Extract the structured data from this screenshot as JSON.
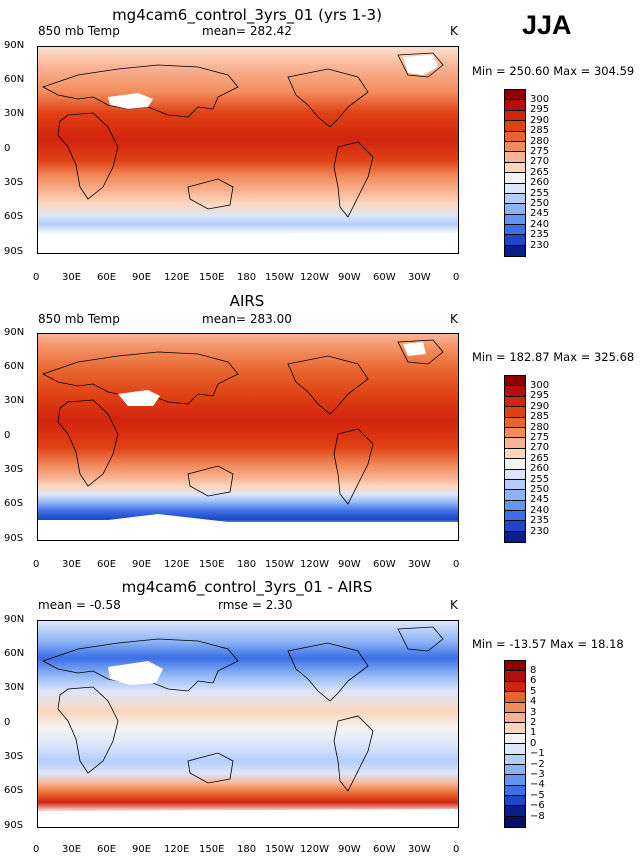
{
  "season": "JJA",
  "panels": [
    {
      "title": "mg4cam6_control_3yrs_01 (yrs 1-3)",
      "left_label": "850 mb Temp",
      "center_label": "mean= 282.42",
      "unit": "K",
      "min_max": "Min = 250.60 Max = 304.59",
      "colorbar_labels": [
        "300",
        "295",
        "290",
        "285",
        "280",
        "275",
        "270",
        "265",
        "260",
        "255",
        "250",
        "245",
        "240",
        "235",
        "230"
      ]
    },
    {
      "title": "AIRS",
      "left_label": "850 mb Temp",
      "center_label": "mean= 283.00",
      "unit": "K",
      "min_max": "Min = 182.87 Max = 325.68",
      "colorbar_labels": [
        "300",
        "295",
        "290",
        "285",
        "280",
        "275",
        "270",
        "265",
        "260",
        "255",
        "250",
        "245",
        "240",
        "235",
        "230"
      ]
    },
    {
      "title": "mg4cam6_control_3yrs_01 - AIRS",
      "left_label": "mean =  -0.58",
      "center_label": "rmse =   2.30",
      "unit": "K",
      "min_max": "Min = -13.57 Max =  18.18",
      "colorbar_labels": [
        "8",
        "6",
        "5",
        "4",
        "3",
        "2",
        "1",
        "0",
        "−1",
        "−2",
        "−3",
        "−4",
        "−5",
        "−6",
        "−8"
      ]
    }
  ],
  "lat_ticks": [
    "90N",
    "60N",
    "30N",
    "0",
    "30S",
    "60S",
    "90S"
  ],
  "lon_ticks": [
    "0",
    "30E",
    "60E",
    "90E",
    "120E",
    "150E",
    "180",
    "150W",
    "120W",
    "90W",
    "60W",
    "30W",
    "0"
  ],
  "colors": {
    "temp_scale": [
      "#8b0000",
      "#b40f0f",
      "#d2230f",
      "#e04114",
      "#e8652f",
      "#f28c5c",
      "#f9b394",
      "#fcd6bd",
      "#f4f4f4",
      "#dce6fa",
      "#b4cdfa",
      "#8cb4f5",
      "#6496f0",
      "#3c6ee6",
      "#1e46c8",
      "#0a1e8c"
    ],
    "diff_scale": [
      "#8b0000",
      "#b40f0f",
      "#d2230f",
      "#e8652f",
      "#f28c5c",
      "#f9b394",
      "#fcd6bd",
      "#f4f4f4",
      "#dce6fa",
      "#b4cdfa",
      "#8cb4f5",
      "#6496f0",
      "#3c6ee6",
      "#1e46c8",
      "#0a1e8c",
      "#061060"
    ]
  }
}
